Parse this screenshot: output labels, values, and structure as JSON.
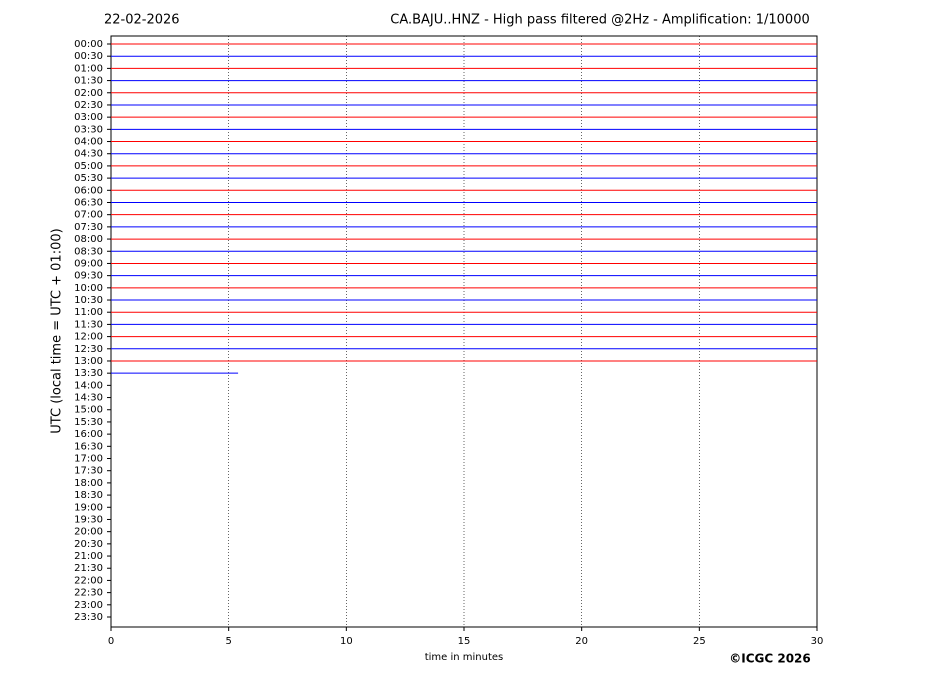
{
  "chart_data": {
    "type": "helicorder",
    "date": "22-02-2026",
    "title": "CA.BAJU..HNZ - High pass filtered @2Hz - Amplification: 1/10000",
    "x_label": "time in minutes",
    "y_label": "UTC (local time = UTC + 01:00)",
    "credit": "©ICGC 2026",
    "categories": [
      "00:00",
      "00:30",
      "01:00",
      "01:30",
      "02:00",
      "02:30",
      "03:00",
      "03:30",
      "04:00",
      "04:30",
      "05:00",
      "05:30",
      "06:00",
      "06:30",
      "07:00",
      "07:30",
      "08:00",
      "08:30",
      "09:00",
      "09:30",
      "10:00",
      "10:30",
      "11:00",
      "11:30",
      "12:00",
      "12:30",
      "13:00",
      "13:30",
      "14:00",
      "14:30",
      "15:00",
      "15:30",
      "16:00",
      "16:30",
      "17:00",
      "17:30",
      "18:00",
      "18:30",
      "19:00",
      "19:30",
      "20:00",
      "20:30",
      "21:00",
      "21:30",
      "22:00",
      "22:30",
      "23:00",
      "23:30"
    ],
    "values": [
      30,
      30,
      30,
      30,
      30,
      30,
      30,
      30,
      30,
      30,
      30,
      30,
      30,
      30,
      30,
      30,
      30,
      30,
      30,
      30,
      30,
      30,
      30,
      30,
      30,
      30,
      30,
      5.4,
      null,
      null,
      null,
      null,
      null,
      null,
      null,
      null,
      null,
      null,
      null,
      null,
      null,
      null,
      null,
      null,
      null,
      null,
      null,
      null
    ],
    "colors": [
      "#ff0000",
      "#0000ff"
    ],
    "xlim": [
      0,
      30
    ],
    "xticks": [
      0,
      5,
      10,
      15,
      20,
      25,
      30
    ],
    "grid": true
  }
}
